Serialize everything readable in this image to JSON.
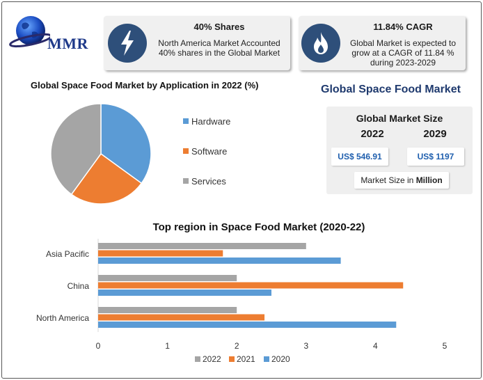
{
  "header": {
    "logo_text": "MMR",
    "card_shares": {
      "title": "40% Shares",
      "text_line1": "North America Market Accounted",
      "text_line2": "40% shares in the Global Market"
    },
    "card_cagr": {
      "title": "11.84% CAGR",
      "text_line1": "Global Market is expected to",
      "text_line2": "grow at a CAGR of 11.84 %",
      "text_line3": "during 2023-2029"
    }
  },
  "main_title": "Global Space Food Market",
  "market_size": {
    "title": "Global Market Size",
    "year_a": "2022",
    "year_b": "2029",
    "value_a": "US$ 546.91",
    "value_b": "US$ 1197",
    "unit_prefix": "Market Size in",
    "unit_bold": "Million"
  },
  "colors": {
    "blue": "#5b9bd5",
    "orange": "#ed7d31",
    "gray": "#a5a5a5",
    "icon_bg": "#2e4f7a",
    "title_blue": "#1f3a6e"
  },
  "chart_data": [
    {
      "type": "pie",
      "title": "Global Space Food Market by Application in 2022 (%)",
      "categories": [
        "Hardware",
        "Software",
        "Services"
      ],
      "values": [
        35,
        25,
        40
      ],
      "colors": [
        "#5b9bd5",
        "#ed7d31",
        "#a5a5a5"
      ],
      "legend": "right"
    },
    {
      "type": "bar",
      "orientation": "horizontal",
      "title": "Top region in Space Food Market (2020-22)",
      "categories": [
        "Asia Pacific",
        "China",
        "North America"
      ],
      "series": [
        {
          "name": "2022",
          "values": [
            3.0,
            2.0,
            2.0
          ],
          "color": "#a5a5a5"
        },
        {
          "name": "2021",
          "values": [
            1.8,
            4.4,
            2.4
          ],
          "color": "#ed7d31"
        },
        {
          "name": "2020",
          "values": [
            3.5,
            2.5,
            4.3
          ],
          "color": "#5b9bd5"
        }
      ],
      "xlim": [
        0,
        5
      ],
      "xticks": [
        "0",
        "1",
        "2",
        "3",
        "4",
        "5"
      ],
      "grid": false,
      "legend": "bottom"
    }
  ]
}
